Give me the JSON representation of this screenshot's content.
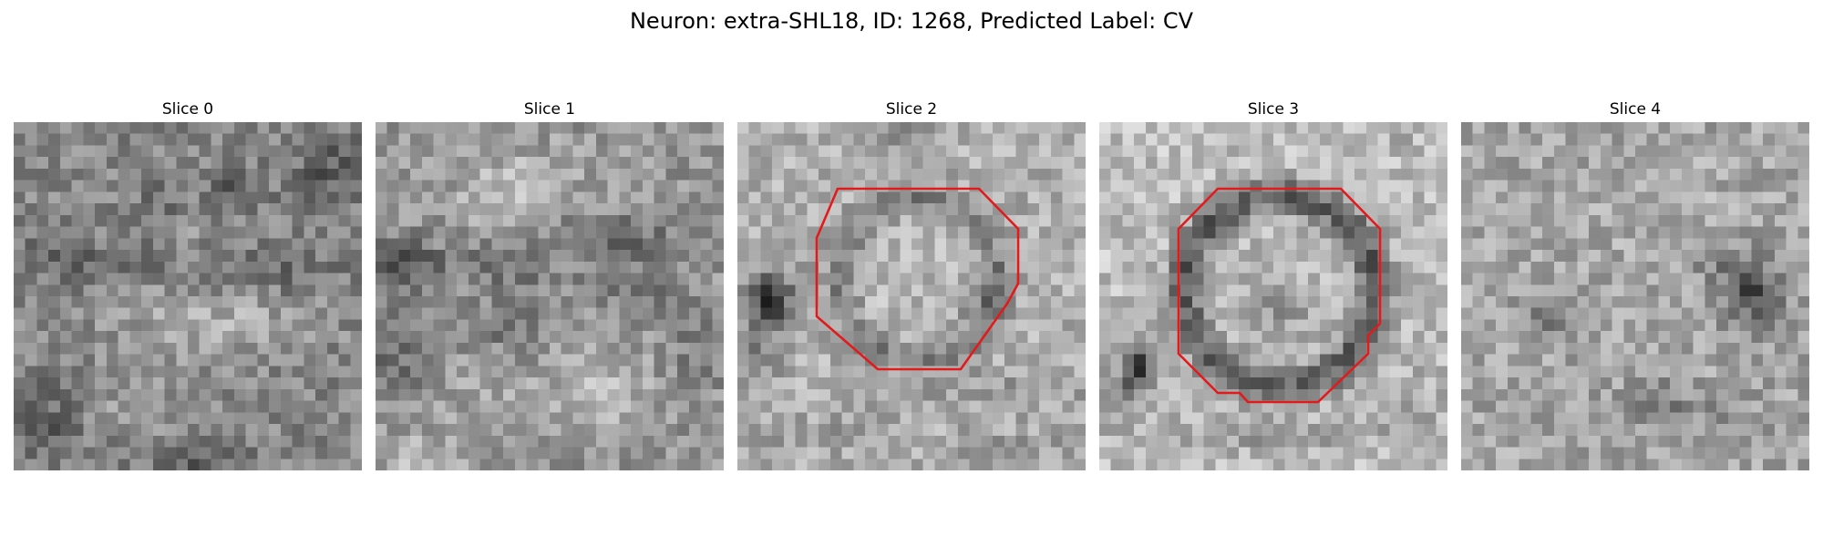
{
  "figure": {
    "title": "Neuron: extra-SHL18, ID: 1268, Predicted Label: CV"
  },
  "panels": [
    {
      "title": "Slice 0",
      "image": "grayscale-em-slice",
      "outline": false
    },
    {
      "title": "Slice 1",
      "image": "grayscale-em-slice",
      "outline": false
    },
    {
      "title": "Slice 2",
      "image": "grayscale-em-slice",
      "outline": true
    },
    {
      "title": "Slice 3",
      "image": "grayscale-em-slice",
      "outline": true
    },
    {
      "title": "Slice 4",
      "image": "grayscale-em-slice",
      "outline": false
    }
  ],
  "colors": {
    "outline": "#e31a1c",
    "background": "#ffffff"
  }
}
